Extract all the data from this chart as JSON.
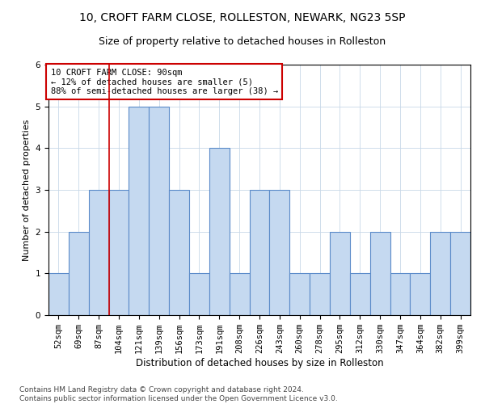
{
  "title": "10, CROFT FARM CLOSE, ROLLESTON, NEWARK, NG23 5SP",
  "subtitle": "Size of property relative to detached houses in Rolleston",
  "xlabel": "Distribution of detached houses by size in Rolleston",
  "ylabel": "Number of detached properties",
  "categories": [
    "52sqm",
    "69sqm",
    "87sqm",
    "104sqm",
    "121sqm",
    "139sqm",
    "156sqm",
    "173sqm",
    "191sqm",
    "208sqm",
    "226sqm",
    "243sqm",
    "260sqm",
    "278sqm",
    "295sqm",
    "312sqm",
    "330sqm",
    "347sqm",
    "364sqm",
    "382sqm",
    "399sqm"
  ],
  "values": [
    1,
    2,
    3,
    3,
    5,
    5,
    3,
    1,
    4,
    1,
    3,
    3,
    1,
    1,
    2,
    1,
    2,
    1,
    1,
    2,
    2
  ],
  "bar_color": "#c5d9f0",
  "bar_edge_color": "#5b8bc9",
  "annotation_box_text": "10 CROFT FARM CLOSE: 90sqm\n← 12% of detached houses are smaller (5)\n88% of semi-detached houses are larger (38) →",
  "annotation_box_color": "#ffffff",
  "annotation_box_edge_color": "#cc0000",
  "vline_color": "#cc0000",
  "vline_x_index": 2.5,
  "ylim": [
    0,
    6
  ],
  "yticks": [
    0,
    1,
    2,
    3,
    4,
    5,
    6
  ],
  "footer": "Contains HM Land Registry data © Crown copyright and database right 2024.\nContains public sector information licensed under the Open Government Licence v3.0.",
  "title_fontsize": 10,
  "subtitle_fontsize": 9,
  "xlabel_fontsize": 8.5,
  "ylabel_fontsize": 8,
  "tick_fontsize": 7.5,
  "annotation_fontsize": 7.5,
  "footer_fontsize": 6.5,
  "fig_width": 6.0,
  "fig_height": 5.0,
  "fig_dpi": 100
}
